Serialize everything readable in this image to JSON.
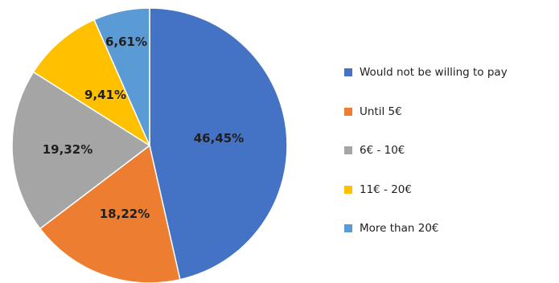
{
  "chart_data": {
    "type": "pie",
    "title": "",
    "categories": [
      "Would not be willing to pay",
      "Until 5€",
      "6€ - 10€",
      "11€ - 20€",
      "More than 20€"
    ],
    "values": [
      46.45,
      18.22,
      19.32,
      9.41,
      6.61
    ],
    "value_labels": [
      "46,45%",
      "18,22%",
      "19,32%",
      "9,41%",
      "6,61%"
    ],
    "colors": [
      "#4472C4",
      "#ED7D31",
      "#A5A5A5",
      "#FFC000",
      "#5B9BD5"
    ],
    "start_angle_deg": 0,
    "direction": "clockwise",
    "legend_position": "right"
  }
}
